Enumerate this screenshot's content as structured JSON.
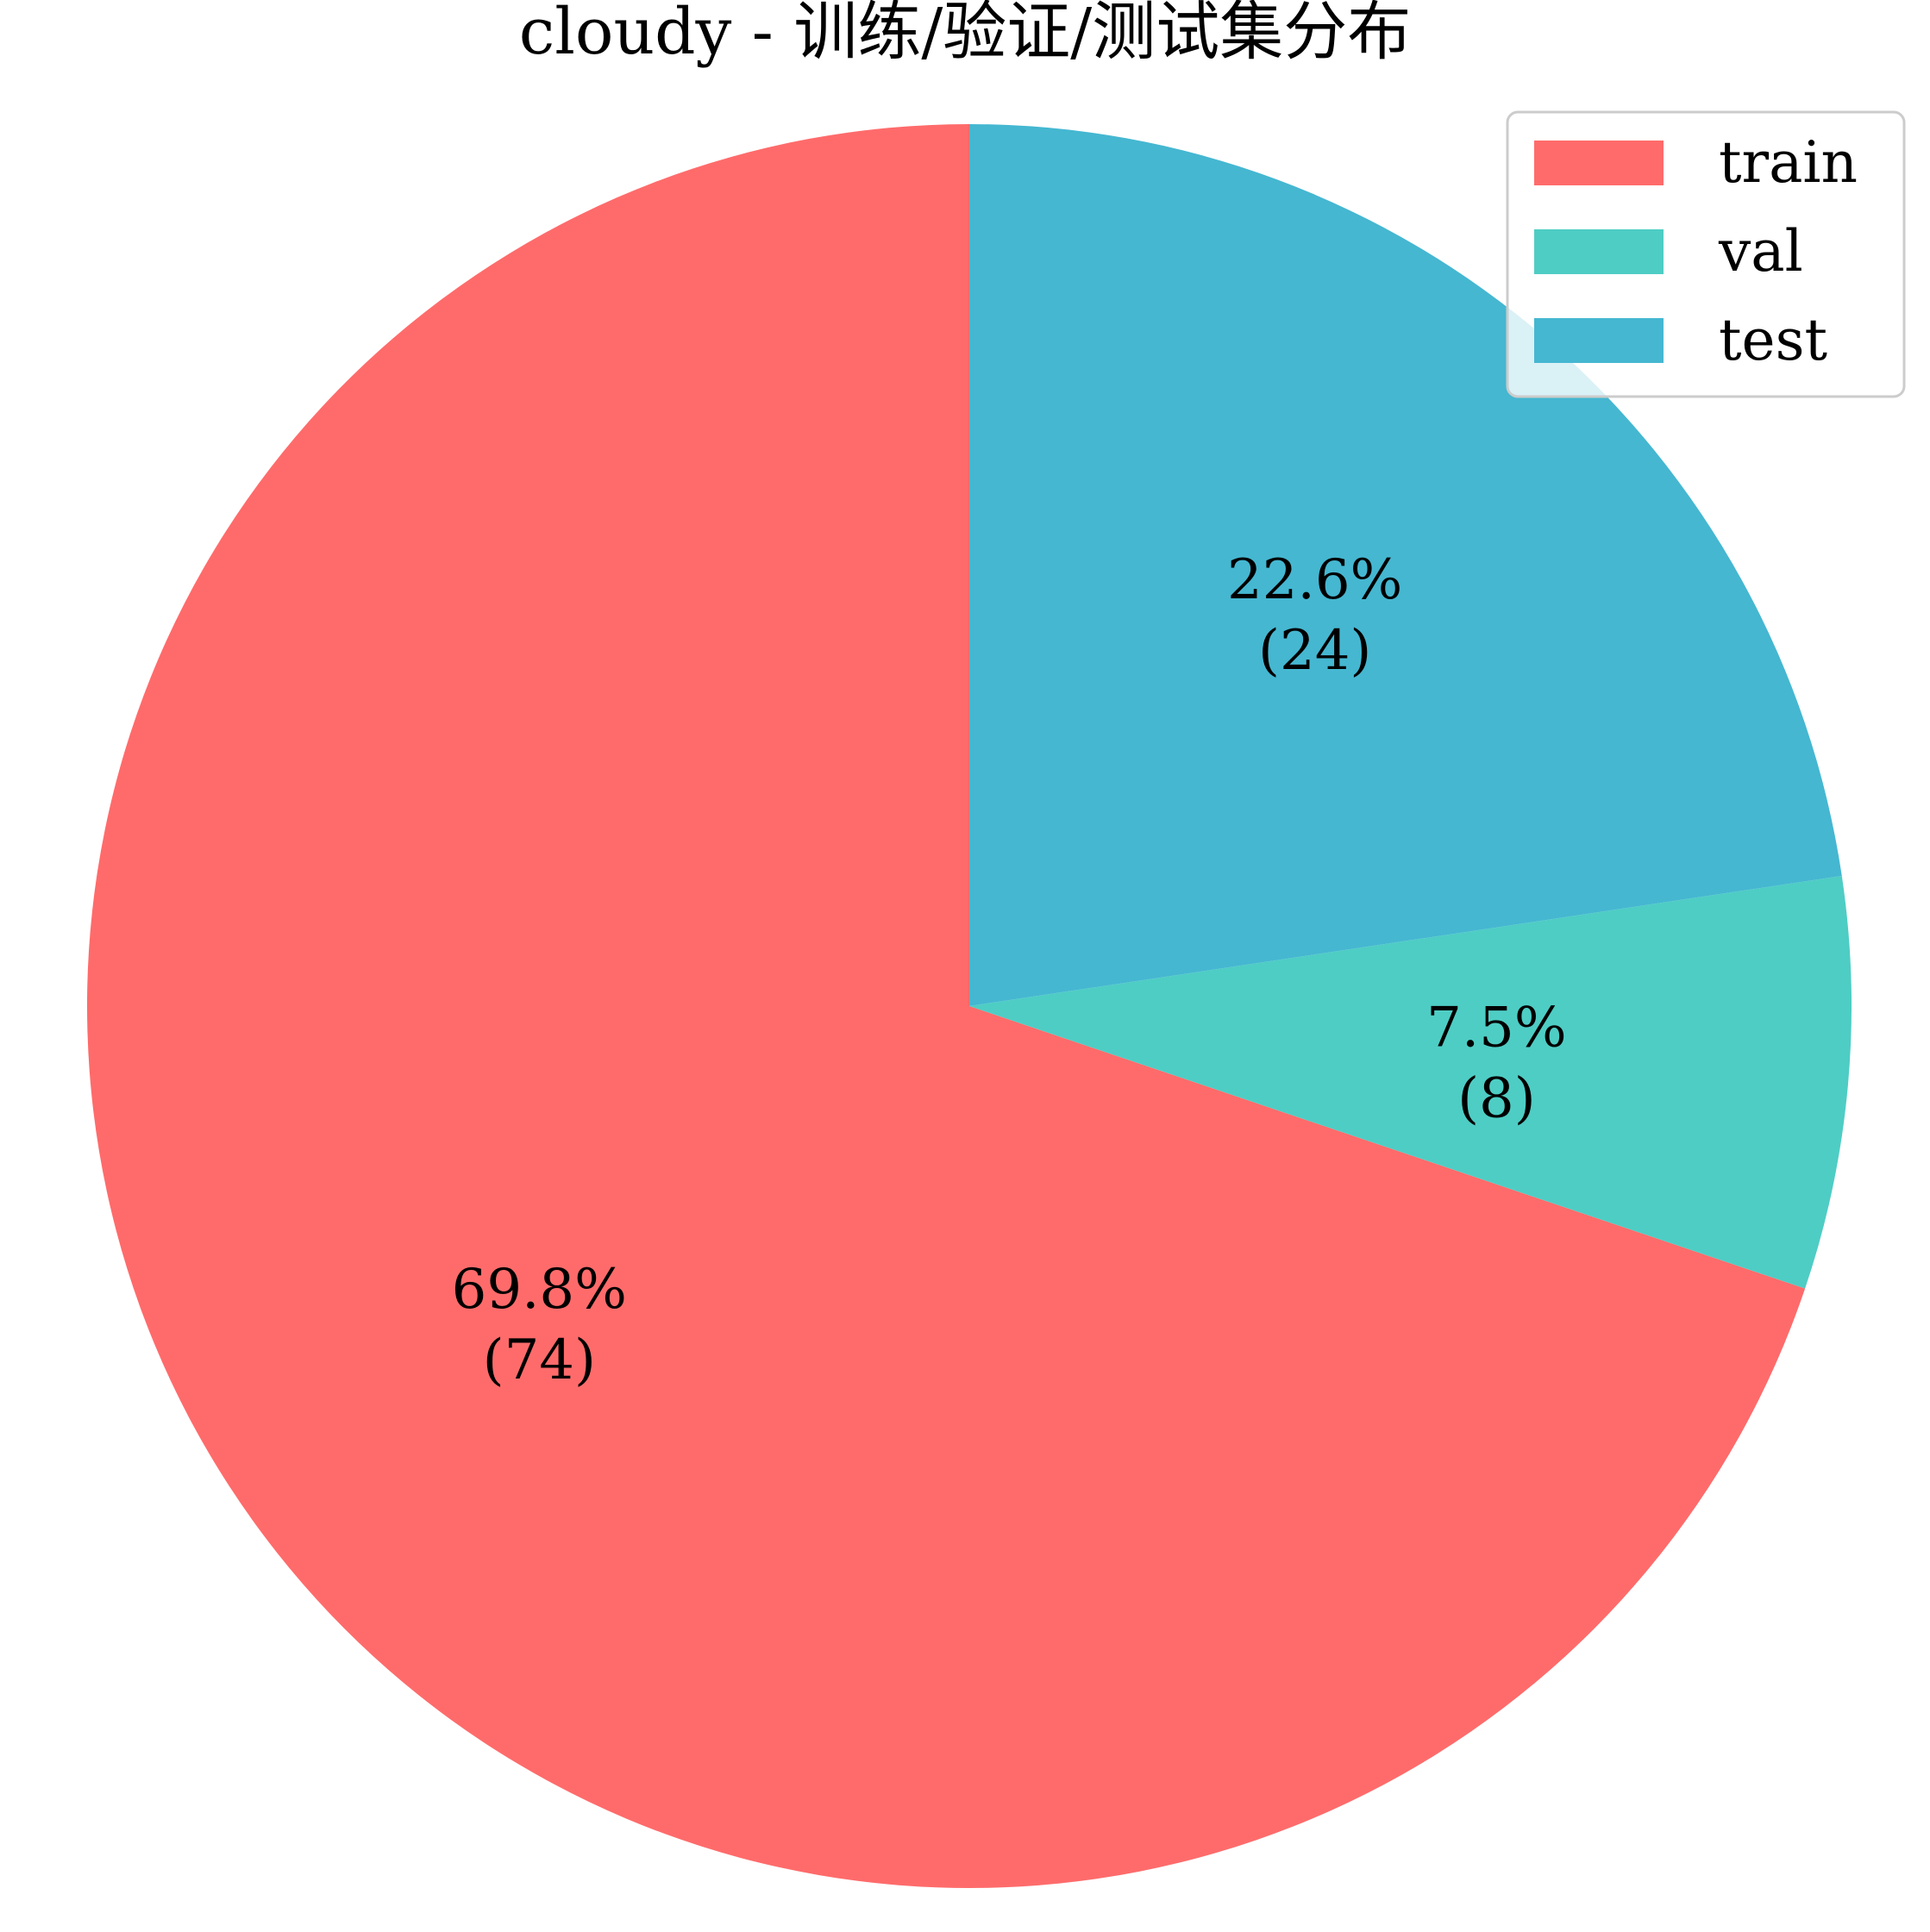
{
  "chart_data": {
    "type": "pie",
    "title": "cloudy - 训练/验证/测试集分布",
    "slices": [
      {
        "name": "train",
        "value": 74,
        "percent_label": "69.8%",
        "count_label": "(74)",
        "color": "#ff6b6b"
      },
      {
        "name": "val",
        "value": 8,
        "percent_label": "7.5%",
        "count_label": "(8)",
        "color": "#4ecdc4"
      },
      {
        "name": "test",
        "value": 24,
        "percent_label": "22.6%",
        "count_label": "(24)",
        "color": "#45b7d1"
      }
    ],
    "start_angle_deg": 90,
    "direction": "counterclockwise",
    "legend": {
      "placement": "top-right",
      "entries": [
        "train",
        "val",
        "test"
      ]
    }
  }
}
